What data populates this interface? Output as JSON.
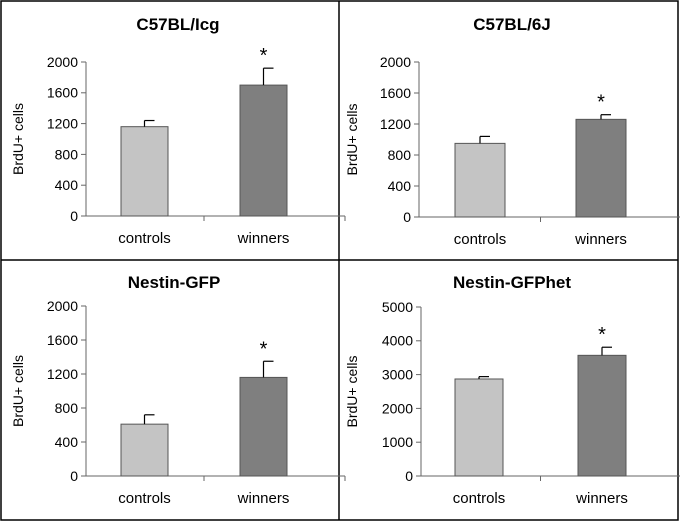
{
  "chart_data": [
    {
      "type": "bar",
      "title": "C57BL/Icg",
      "ylabel": "BrdU+ cells",
      "categories": [
        "controls",
        "winners"
      ],
      "values": [
        1160,
        1700
      ],
      "errors": [
        80,
        220
      ],
      "significance": [
        "",
        "*"
      ],
      "ylim": [
        0,
        2000
      ],
      "yticks": [
        0,
        400,
        800,
        1200,
        1600,
        2000
      ],
      "colors": [
        "#c4c4c4",
        "#7f7f7f"
      ],
      "grid": false
    },
    {
      "type": "bar",
      "title": "C57BL/6J",
      "ylabel": "BrdU+ cells",
      "categories": [
        "controls",
        "winners"
      ],
      "values": [
        950,
        1260
      ],
      "errors": [
        90,
        60
      ],
      "significance": [
        "",
        "*"
      ],
      "ylim": [
        0,
        2000
      ],
      "yticks": [
        0,
        400,
        800,
        1200,
        1600,
        2000
      ],
      "colors": [
        "#c4c4c4",
        "#7f7f7f"
      ],
      "grid": false
    },
    {
      "type": "bar",
      "title": "Nestin-GFP",
      "ylabel": "BrdU+ cells",
      "categories": [
        "controls",
        "winners"
      ],
      "values": [
        610,
        1160
      ],
      "errors": [
        110,
        190
      ],
      "significance": [
        "",
        "*"
      ],
      "ylim": [
        0,
        2000
      ],
      "yticks": [
        0,
        400,
        800,
        1200,
        1600,
        2000
      ],
      "colors": [
        "#c4c4c4",
        "#7f7f7f"
      ],
      "grid": false
    },
    {
      "type": "bar",
      "title": "Nestin-GFPhet",
      "ylabel": "BrdU+ cells",
      "categories": [
        "controls",
        "winners"
      ],
      "values": [
        2870,
        3570
      ],
      "errors": [
        70,
        240
      ],
      "significance": [
        "",
        "*"
      ],
      "ylim": [
        0,
        5000
      ],
      "yticks": [
        0,
        1000,
        2000,
        3000,
        4000,
        5000
      ],
      "colors": [
        "#c4c4c4",
        "#7f7f7f"
      ],
      "grid": false
    }
  ]
}
